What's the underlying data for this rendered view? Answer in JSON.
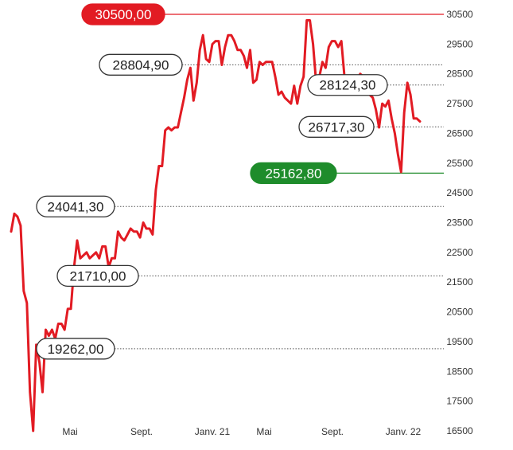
{
  "chart_data": {
    "type": "line",
    "yticks": [
      30500,
      29500,
      28500,
      27500,
      26500,
      25500,
      24500,
      23500,
      22500,
      21500,
      20500,
      19500,
      18500,
      17500,
      16500
    ],
    "ytick_labels": [
      "30500",
      "29500",
      "28500",
      "27500",
      "26500",
      "25500",
      "24500",
      "23500",
      "22500",
      "21500",
      "20500",
      "19500",
      "18500",
      "17500",
      "16500"
    ],
    "xtick_labels": [
      "Mai",
      "Sept.",
      "Janv. 21",
      "Mai",
      "Sept.",
      "Janv. 22"
    ],
    "ylim": [
      16500,
      30500
    ],
    "grid": false,
    "line_color": "#e21b23",
    "series": [
      {
        "values": [
          23200,
          23800,
          23700,
          23400,
          21200,
          20800,
          17800,
          16500,
          19400,
          18800,
          17800,
          19900,
          19700,
          19900,
          19600,
          20100,
          20100,
          19900,
          20600,
          20600,
          22000,
          22900,
          22300,
          22400,
          22500,
          22300,
          22400,
          22500,
          22300,
          22700,
          22700,
          22000,
          22300,
          22300,
          23200,
          23000,
          22900,
          23100,
          23300,
          23200,
          23200,
          23000,
          23500,
          23300,
          23300,
          23100,
          24600,
          25400,
          25400,
          26600,
          26700,
          26600,
          26700,
          26700,
          27200,
          27700,
          28300,
          28700,
          27600,
          28200,
          29300,
          29800,
          29000,
          28900,
          29500,
          29600,
          29600,
          28800,
          29400,
          29800,
          29800,
          29600,
          29300,
          29300,
          29100,
          28700,
          29300,
          28200,
          28300,
          28900,
          28800,
          28900,
          28900,
          28900,
          28400,
          27800,
          27900,
          27700,
          27600,
          27500,
          28100,
          27500,
          28100,
          28400,
          30300,
          30300,
          29500,
          28200,
          28400,
          28900,
          28700,
          29400,
          29600,
          29600,
          29400,
          29600,
          28400,
          28400,
          28200,
          28000,
          28300,
          28500,
          28400,
          28200,
          27800,
          27700,
          27300,
          26700,
          27500,
          27400,
          27600,
          27000,
          26500,
          25800,
          25200,
          27200,
          28200,
          27800,
          27000,
          27000,
          26900
        ]
      }
    ],
    "annotations": [
      {
        "label": "30500,00",
        "value": 30500,
        "style": "red"
      },
      {
        "label": "28804,90",
        "value": 28804.9,
        "style": "white"
      },
      {
        "label": "28124,30",
        "value": 28124.3,
        "style": "white"
      },
      {
        "label": "26717,30",
        "value": 26717.3,
        "style": "white"
      },
      {
        "label": "25162,80",
        "value": 25162.8,
        "style": "green"
      },
      {
        "label": "24041,30",
        "value": 24041.3,
        "style": "white"
      },
      {
        "label": "21710,00",
        "value": 21710,
        "style": "white"
      },
      {
        "label": "19262,00",
        "value": 19262,
        "style": "white"
      }
    ],
    "colors": {
      "red": "#e21b23",
      "green": "#1e8c2b",
      "gray_line": "#555555"
    }
  }
}
